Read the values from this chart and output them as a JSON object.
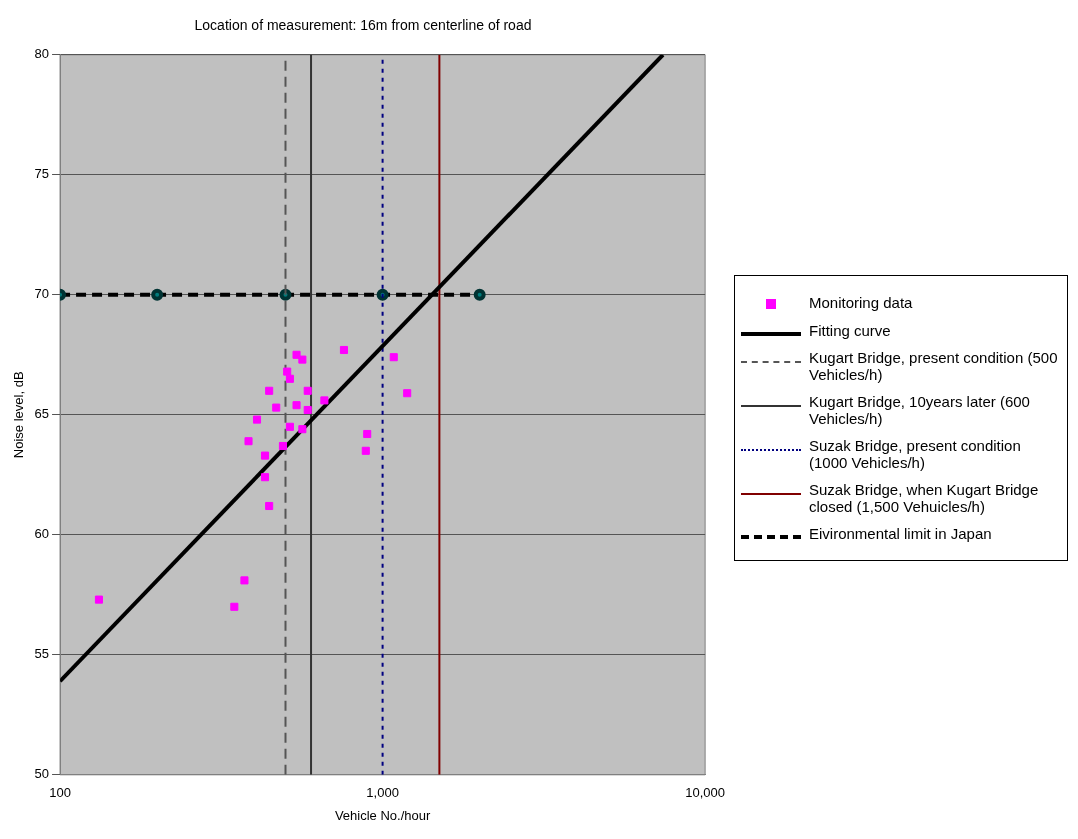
{
  "chart_data": {
    "type": "scatter",
    "title": "Location of measurement: 16m from centerline of road",
    "xlabel": "Vehicle No./hour",
    "ylabel": "Noise level, dB",
    "log": "x",
    "xlim": [
      100,
      10000
    ],
    "xticks": [
      100,
      {
        "value": 1000,
        "label": "1,000"
      },
      {
        "value": 10000,
        "label": "10,000"
      }
    ],
    "ylim": [
      50,
      80
    ],
    "yticks": [
      50,
      55,
      60,
      65,
      70,
      75,
      80
    ],
    "grid": "y",
    "legend": "right",
    "series": [
      {
        "name": "Monitoring data",
        "marker": "square",
        "color": "#ff00ff",
        "x": [
          541,
          564,
          506,
          516,
          445,
          586,
          468,
          541,
          586,
          660,
          408,
          516,
          564,
          384,
          491,
          432,
          432,
          445,
          759,
          1083,
          1192,
          896,
          887,
          373,
          347,
          132
        ],
        "values": [
          67.5,
          67.3,
          66.8,
          66.5,
          66.0,
          66.0,
          65.3,
          65.4,
          65.2,
          65.6,
          64.8,
          64.5,
          64.4,
          63.9,
          63.7,
          63.3,
          62.4,
          61.2,
          67.7,
          67.4,
          65.9,
          64.2,
          63.5,
          58.1,
          57.0,
          57.3
        ]
      },
      {
        "name": "Fitting curve",
        "type": "line",
        "marker": "none",
        "line_style": "solid",
        "color": "#000000",
        "x": [
          100,
          7400
        ],
        "values": [
          53.9,
          80
        ]
      },
      {
        "name": "Kugart Bridge, present condition (500 Vehicles/h)",
        "type": "line",
        "marker": "none",
        "line_style": "dashed",
        "color": "#555555",
        "x": [
          500,
          500
        ],
        "values": [
          50,
          80
        ]
      },
      {
        "name": "Kugart Bridge, 10years later (600 Vehicles/h)",
        "type": "line",
        "marker": "none",
        "line_style": "solid",
        "color": "#333333",
        "x": [
          600,
          600
        ],
        "values": [
          50,
          80
        ]
      },
      {
        "name": "Suzak Bridge, present condition (1000 Vehicles/h)",
        "type": "line",
        "marker": "none",
        "line_style": "dotted",
        "color": "#000080",
        "x": [
          1000,
          1000
        ],
        "values": [
          50,
          80
        ]
      },
      {
        "name": "Suzak Bridge, when Kugart Bridge closed (1,500 Vehuicles/h)",
        "type": "line",
        "marker": "none",
        "line_style": "solid",
        "color": "#800000",
        "x": [
          1500,
          1500
        ],
        "values": [
          50,
          80
        ]
      },
      {
        "name": "Eivironmental limit in Japan",
        "type": "line",
        "marker": "circle",
        "line_style": "dashed",
        "color": "#000000",
        "x": [
          100,
          200,
          500,
          1000,
          2000
        ],
        "values": [
          70,
          70,
          70,
          70,
          70
        ]
      }
    ]
  }
}
